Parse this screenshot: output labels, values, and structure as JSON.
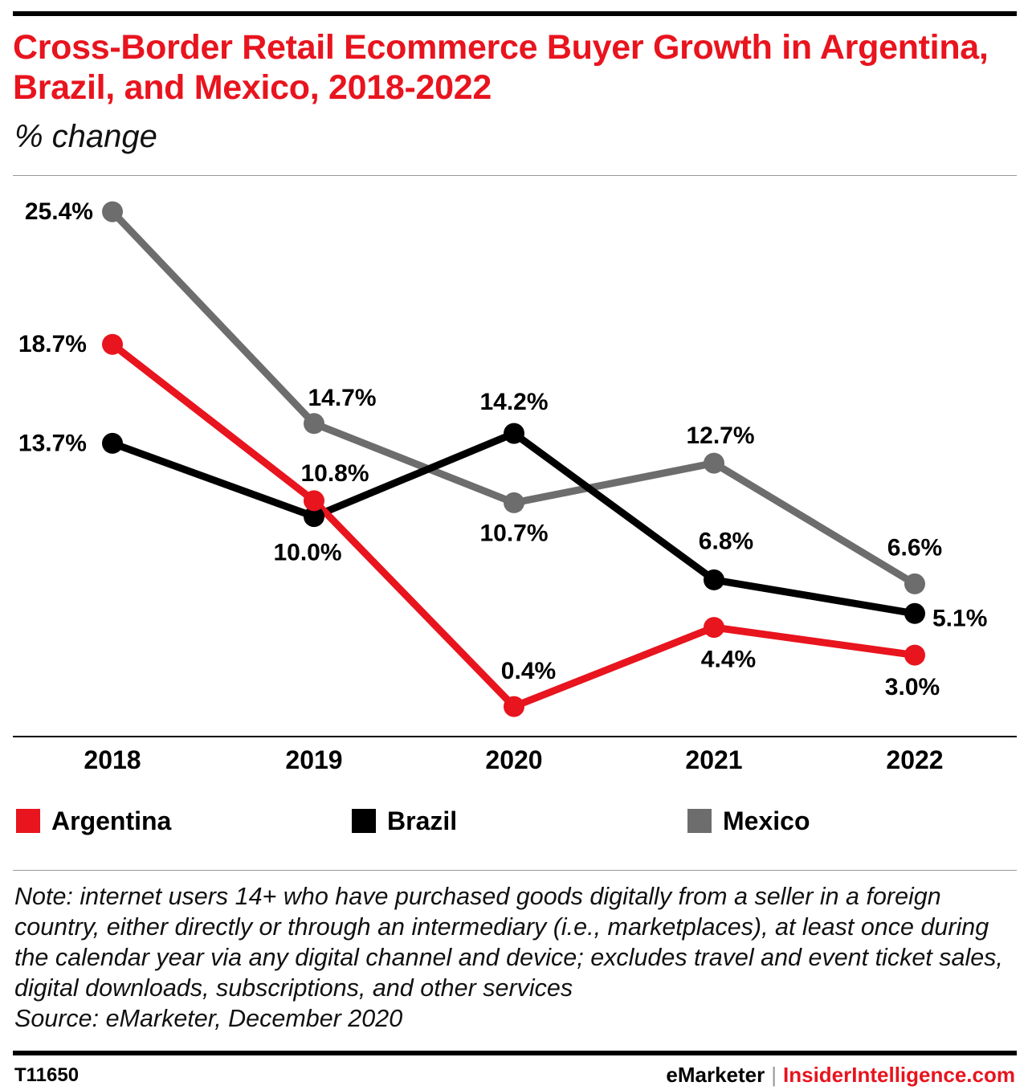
{
  "header": {
    "title": "Cross-Border Retail Ecommerce Buyer Growth in Argentina, Brazil, and Mexico, 2018-2022",
    "subtitle": "% change"
  },
  "chart_data": {
    "type": "line",
    "title": "Cross-Border Retail Ecommerce Buyer Growth in Argentina, Brazil, and Mexico, 2018-2022",
    "subtitle": "% change",
    "categories": [
      "2018",
      "2019",
      "2020",
      "2021",
      "2022"
    ],
    "ylim": [
      0,
      26
    ],
    "grid": false,
    "legend_position": "bottom",
    "series": [
      {
        "name": "Argentina",
        "color": "#e8141e",
        "values": [
          18.7,
          10.8,
          0.4,
          4.4,
          3.0
        ],
        "labels": [
          "18.7%",
          "10.8%",
          "0.4%",
          "4.4%",
          "3.0%"
        ]
      },
      {
        "name": "Brazil",
        "color": "#000000",
        "values": [
          13.7,
          10.0,
          14.2,
          6.8,
          5.1
        ],
        "labels": [
          "13.7%",
          "10.0%",
          "14.2%",
          "6.8%",
          "5.1%"
        ]
      },
      {
        "name": "Mexico",
        "color": "#6d6d6d",
        "values": [
          25.4,
          14.7,
          10.7,
          12.7,
          6.6
        ],
        "labels": [
          "25.4%",
          "14.7%",
          "10.7%",
          "12.7%",
          "6.6%"
        ]
      }
    ]
  },
  "legend": {
    "items": [
      {
        "label": "Argentina",
        "color": "#e8141e"
      },
      {
        "label": "Brazil",
        "color": "#000000"
      },
      {
        "label": "Mexico",
        "color": "#6d6d6d"
      }
    ]
  },
  "note": "Note: internet users 14+ who have purchased goods digitally from a seller in a foreign country, either directly or through an intermediary (i.e., marketplaces), at least once during the calendar year via any digital channel and device; excludes travel and event ticket sales, digital downloads, subscriptions, and other services\nSource: eMarketer, December 2020",
  "footer": {
    "chart_id": "T11650",
    "brand": "eMarketer",
    "separator": "|",
    "site": "InsiderIntelligence.com"
  }
}
